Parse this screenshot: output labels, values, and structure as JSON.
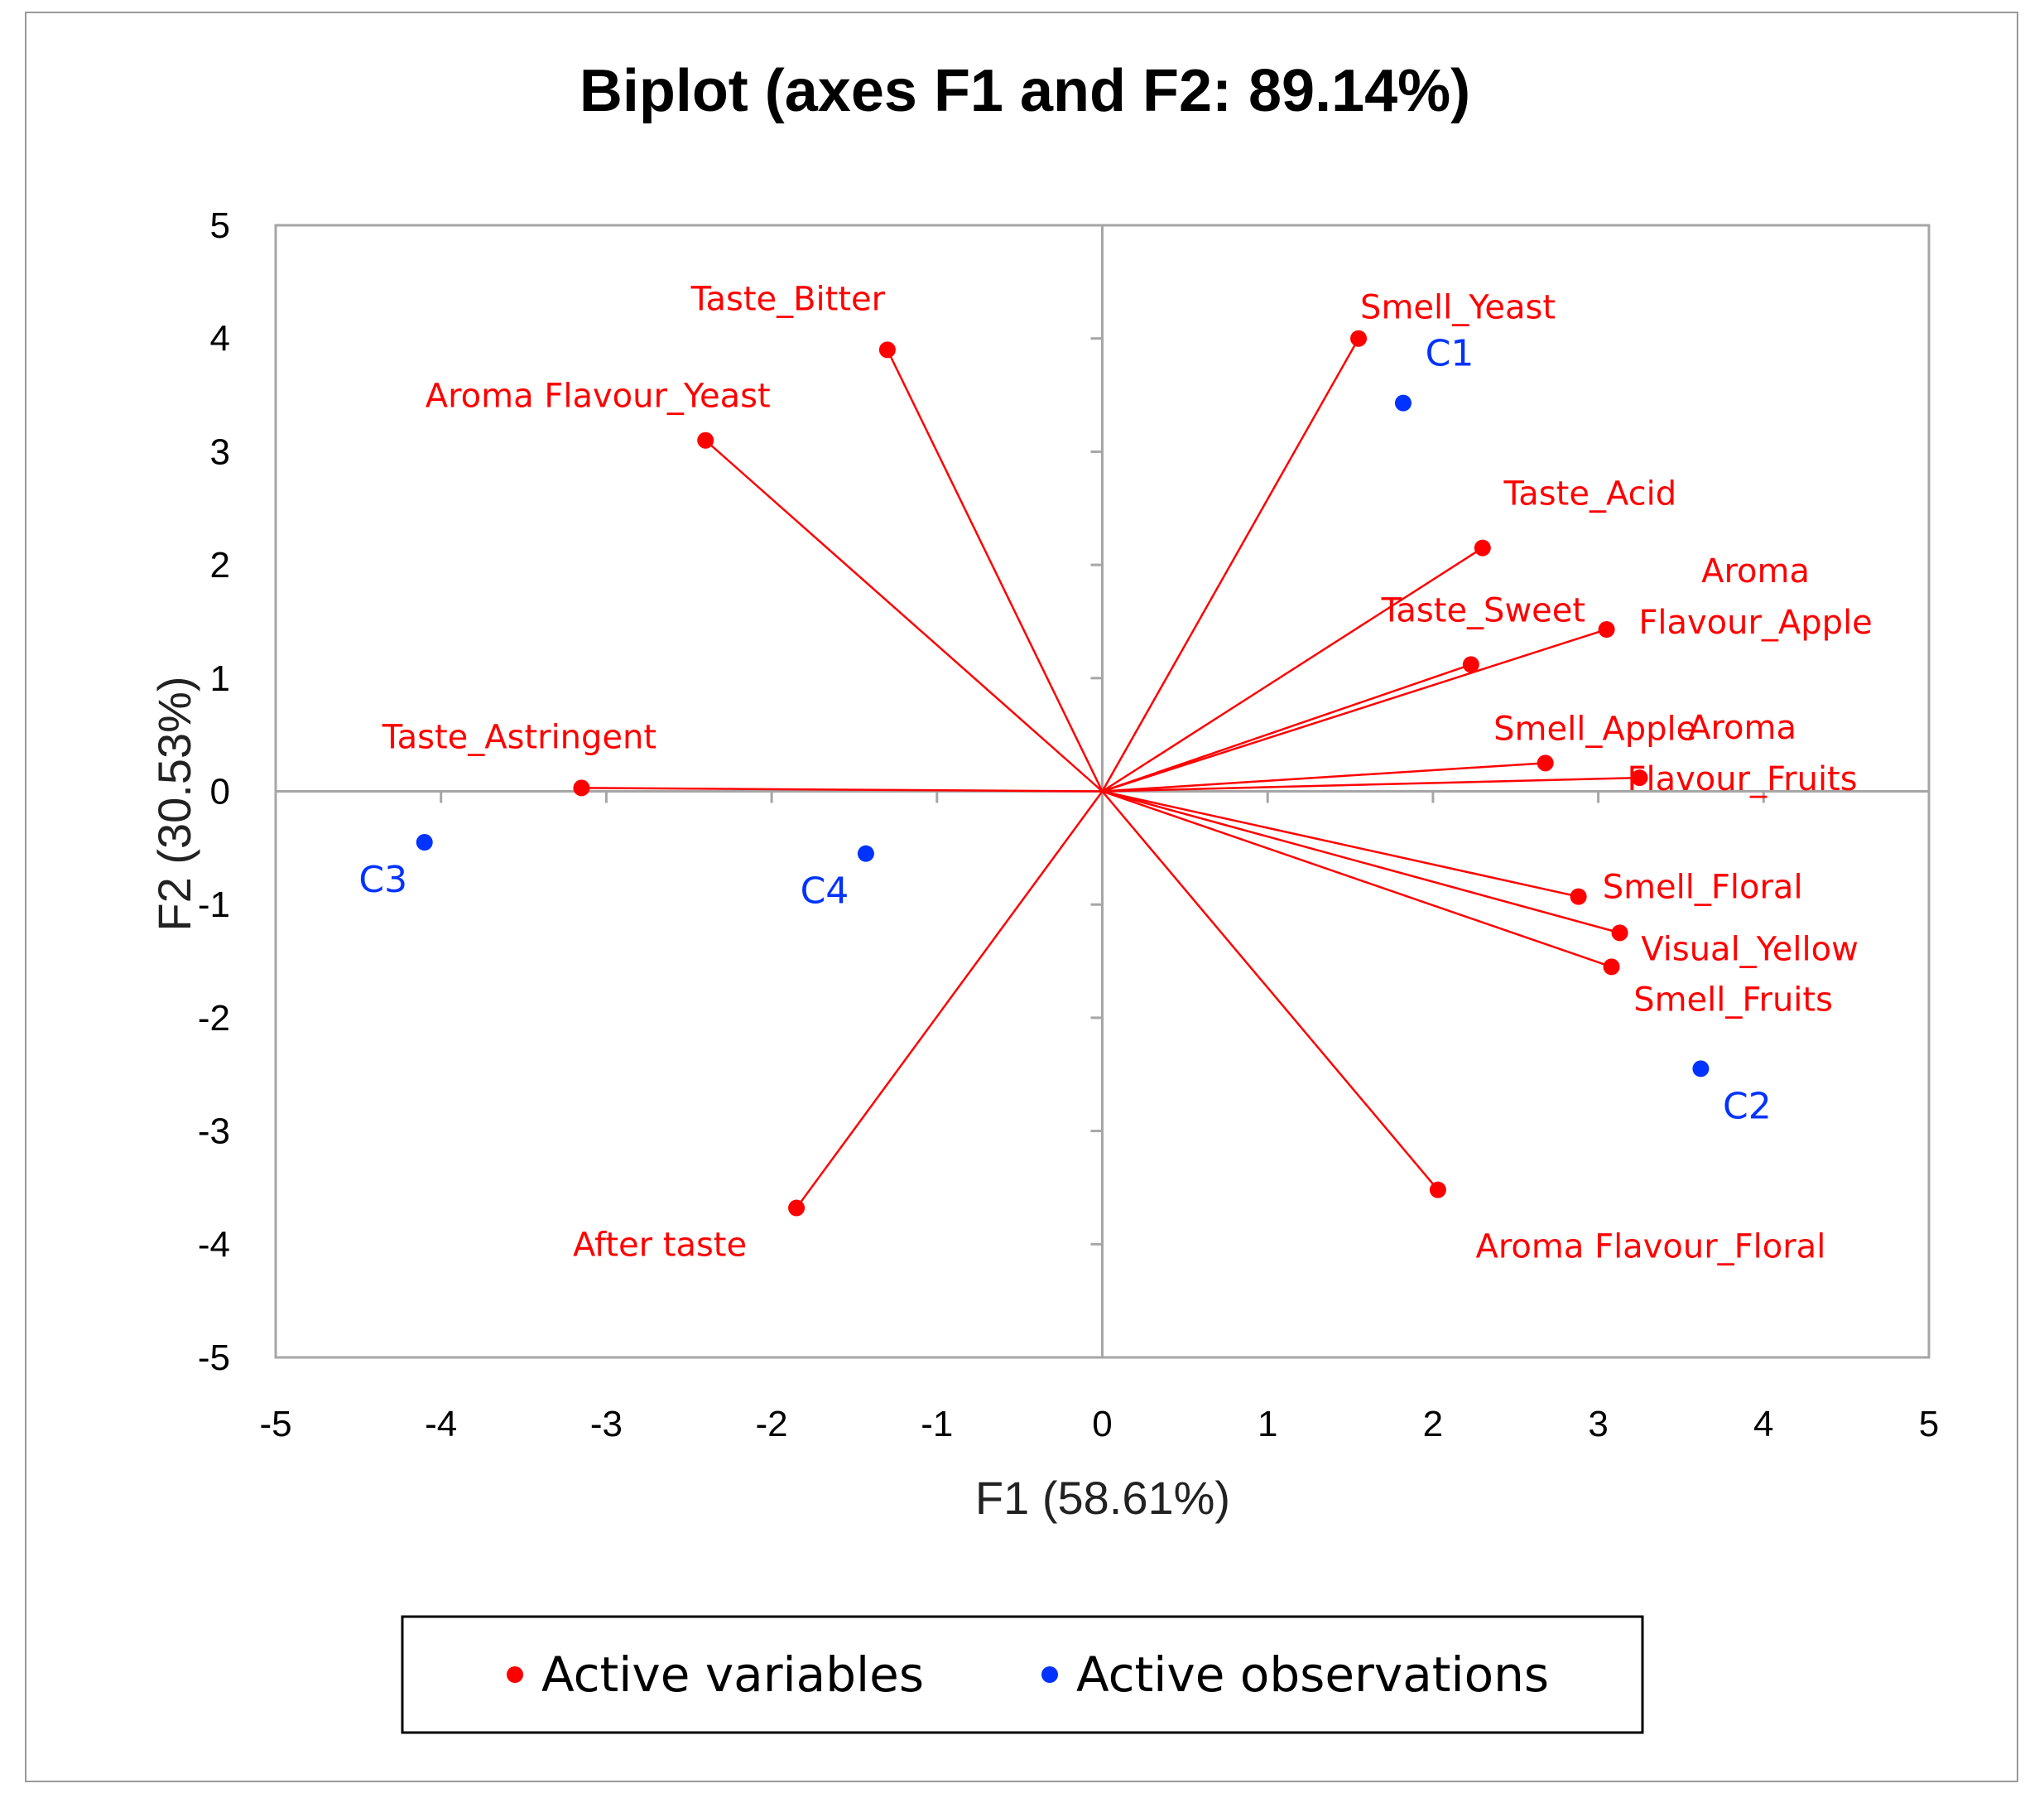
{
  "chart_data": {
    "type": "scatter",
    "title": "Biplot (axes F1 and F2: 89.14%)",
    "xlabel": "F1 (58.61%)",
    "ylabel": "F2 (30.53%)",
    "xlim": [
      -5,
      5
    ],
    "ylim": [
      -5,
      5
    ],
    "xticks": [
      "-5",
      "-4",
      "-3",
      "-2",
      "-1",
      "0",
      "1",
      "2",
      "3",
      "4",
      "5"
    ],
    "yticks": [
      "5",
      "4",
      "3",
      "2",
      "1",
      "0",
      "-1",
      "-2",
      "-3",
      "-4",
      "-5"
    ],
    "grid": false,
    "colors": {
      "variables": "#ff0000",
      "observations": "#0033ff",
      "axes": "#a6a6a6"
    },
    "variables": [
      {
        "label": "Taste_Bitter",
        "x": -1.3,
        "y": 3.9
      },
      {
        "label": "Aroma Flavour_Yeast",
        "x": -2.4,
        "y": 3.1
      },
      {
        "label": "Smell_Yeast",
        "x": 1.55,
        "y": 4.0
      },
      {
        "label": "Taste_Acid",
        "x": 2.3,
        "y": 2.15
      },
      {
        "label": "Taste_Sweet",
        "x": 2.23,
        "y": 1.12
      },
      {
        "label": "Aroma Flavour_Apple",
        "x": 3.05,
        "y": 1.43
      },
      {
        "label": "Smell_Apple",
        "x": 2.68,
        "y": 0.25
      },
      {
        "label": "Aroma Flavour_Fruits",
        "x": 3.25,
        "y": 0.12
      },
      {
        "label": "Taste_Astringent",
        "x": -3.15,
        "y": 0.03
      },
      {
        "label": "Smell_Floral",
        "x": 2.88,
        "y": -0.93
      },
      {
        "label": "Visual_Yellow",
        "x": 3.13,
        "y": -1.25
      },
      {
        "label": "Smell_Fruits",
        "x": 3.08,
        "y": -1.55
      },
      {
        "label": "After taste",
        "x": -1.85,
        "y": -3.68
      },
      {
        "label": "Aroma Flavour_Floral",
        "x": 2.03,
        "y": -3.52
      }
    ],
    "observations": [
      {
        "label": "C1",
        "x": 1.82,
        "y": 3.43
      },
      {
        "label": "C2",
        "x": 3.62,
        "y": -2.45
      },
      {
        "label": "C3",
        "x": -4.1,
        "y": -0.45
      },
      {
        "label": "C4",
        "x": -1.43,
        "y": -0.55
      }
    ],
    "legend": {
      "placement": "bottom",
      "entries": [
        "Active variables",
        "Active observations"
      ]
    }
  }
}
